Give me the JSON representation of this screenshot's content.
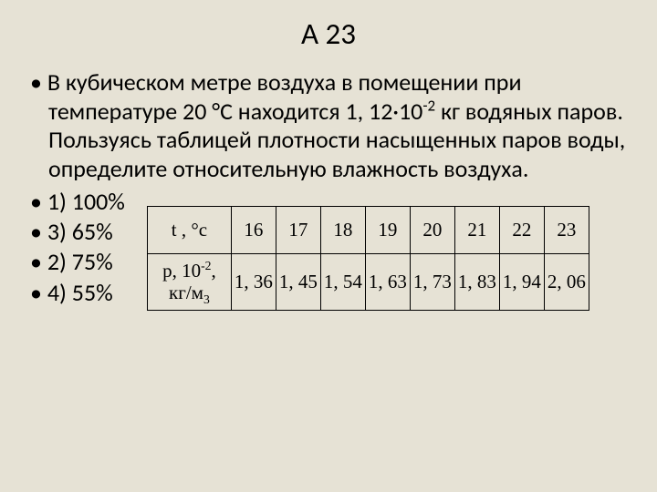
{
  "title": "А 23",
  "problem": {
    "bullet": "• ",
    "text_p1": "В кубическом метре воздуха в помещении при температуре 20 °С находится 1, 12·10",
    "text_exp": "-2",
    "text_p2": " кг водяных паров. Пользуясь таблицей плотности насыщенных паров воды, определите относительную влажность воздуха."
  },
  "options": [
    "1) 100%",
    "3) 65%",
    "2) 75%",
    "4) 55%"
  ],
  "table": {
    "row1_header": "t , °c",
    "row1_values": [
      "16",
      "17",
      "18",
      "19",
      "20",
      "21",
      "22",
      "23"
    ],
    "row2_header_p1": "p, 10",
    "row2_header_exp": "-2",
    "row2_header_p2": ", кг/м",
    "row2_header_sub": "3",
    "row2_values": [
      "1, 36",
      "1, 45",
      "1, 54",
      "1, 63",
      "1, 73",
      "1, 83",
      "1, 94",
      "2, 06"
    ]
  },
  "colors": {
    "background": "#e6e2d5",
    "text": "#000000",
    "border": "#000000"
  }
}
